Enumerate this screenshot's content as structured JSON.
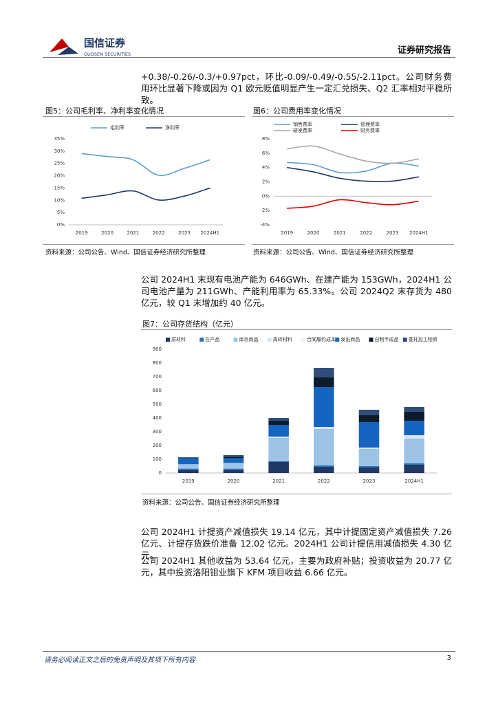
{
  "header": {
    "logo": "国信证券",
    "logo_en": "GUOSEN SECURITIES",
    "report_type": "证券研究报告"
  },
  "paragraphs": [
    "+0.38/-0.26/-0.3/+0.97pct，环比-0.09/-0.49/-0.55/-2.11pct。公司财务费用环比显著下降或因为 Q1 欧元贬值明显产生一定汇兑损失、Q2 汇率相对平稳所致。",
    "公司 2024H1 末现有电池产能为 646GWh、在建产能为 153GWh，2024H1 公司电池产量为 211GWh、产能利用率为 65.33%。公司 2024Q2 末存货为 480 亿元，较 Q1 末增加约 40 亿元。",
    "公司 2024H1 计提资产减值损失 19.14 亿元，其中计提固定资产减值损失 7.26 亿元、计提存货跌价准备 12.02 亿元。2024H1 公司计提信用减值损失 4.30 亿元。",
    "公司 2024H1 其他收益为 53.64 亿元，主要为政府补贴；投资收益为 20.77 亿元，其中投资洛阳钼业旗下 KFM 项目收益 6.66 亿元。"
  ],
  "chart_data": [
    {
      "type": "line",
      "title": "图5：公司毛利率、净利率变化情况",
      "source": "资料来源：公司公告、Wind、国信证券经济研究所整理",
      "categories": [
        "2019",
        "2020",
        "2021",
        "2022",
        "2023",
        "2024H1"
      ],
      "series": [
        {
          "name": "毛利率",
          "color": "#5b9bd5",
          "values": [
            29,
            27.8,
            26.5,
            20.2,
            23,
            26.5
          ]
        },
        {
          "name": "净利率",
          "color": "#1f3864",
          "values": [
            10.8,
            12.2,
            13.8,
            10.1,
            11.7,
            15
          ]
        }
      ],
      "ylim": [
        0,
        35
      ],
      "yticks": [
        {
          "value": 0,
          "label": "0%"
        },
        {
          "value": 5,
          "label": "5%"
        },
        {
          "value": 10,
          "label": "10%"
        },
        {
          "value": 15,
          "label": "15%"
        },
        {
          "value": 20,
          "label": "20%"
        },
        {
          "value": 25,
          "label": "25%"
        },
        {
          "value": 30,
          "label": "30%"
        },
        {
          "value": 35,
          "label": "35%"
        }
      ]
    },
    {
      "type": "line",
      "title": "图6：公司费用率变化情况",
      "source": "资料来源：公司公告、Wind、国信证券经济研究所整理",
      "categories": [
        "2019",
        "2020",
        "2021",
        "2022",
        "2023",
        "2024H1"
      ],
      "series": [
        {
          "name": "销售费率",
          "color": "#5b9bd5",
          "values": [
            4.7,
            4.4,
            3.3,
            3.5,
            4.6,
            4.2
          ]
        },
        {
          "name": "管理费率",
          "color": "#1f3864",
          "values": [
            4.0,
            3.4,
            2.5,
            2.1,
            2.1,
            2.7
          ]
        },
        {
          "name": "研发费率",
          "color": "#a6a6a6",
          "values": [
            6.6,
            7.0,
            5.9,
            4.9,
            4.6,
            5.2
          ]
        },
        {
          "name": "财务费率",
          "color": "#e00000",
          "values": [
            -1.7,
            -1.4,
            -0.5,
            -0.9,
            -1.2,
            -0.7
          ]
        }
      ],
      "ylim": [
        -4,
        8
      ],
      "yticks": [
        {
          "value": -4,
          "label": "-4%"
        },
        {
          "value": -2,
          "label": "-2%"
        },
        {
          "value": 0,
          "label": "0%"
        },
        {
          "value": 2,
          "label": "2%"
        },
        {
          "value": 4,
          "label": "4%"
        },
        {
          "value": 6,
          "label": "6%"
        },
        {
          "value": 8,
          "label": "8%"
        }
      ]
    },
    {
      "type": "bar",
      "stacked": true,
      "title": "图7：公司存货结构（亿元）",
      "source": "资料来源：公司公告、国信证券经济研究所整理",
      "categories": [
        "2019",
        "2020",
        "2021",
        "2022",
        "2023",
        "2024H1"
      ],
      "series": [
        {
          "name": "原材料",
          "color": "#1f3864",
          "values": [
            22,
            22,
            80,
            45,
            40,
            60
          ]
        },
        {
          "name": "在产品",
          "color": "#2e75b6",
          "values": [
            10,
            10,
            5,
            10,
            10,
            10
          ]
        },
        {
          "name": "库存商品",
          "color": "#9dc3e6",
          "values": [
            28,
            38,
            170,
            265,
            125,
            180
          ]
        },
        {
          "name": "周转材料",
          "color": "#d6e6f5",
          "values": [
            3,
            3,
            10,
            15,
            10,
            25
          ]
        },
        {
          "name": "合同履约成本",
          "color": "#eef4fb",
          "values": [
            0,
            0,
            0,
            0,
            0,
            0
          ]
        },
        {
          "name": "发出商品",
          "color": "#1565c0",
          "values": [
            45,
            35,
            85,
            290,
            185,
            105
          ]
        },
        {
          "name": "自制半成品",
          "color": "#0d1b2a",
          "values": [
            3,
            10,
            30,
            70,
            50,
            65
          ]
        },
        {
          "name": "委托加工物资",
          "color": "#2f4f7a",
          "values": [
            4,
            12,
            20,
            70,
            40,
            35
          ]
        }
      ],
      "ylim": [
        0,
        900
      ],
      "yticks": [
        0,
        100,
        200,
        300,
        400,
        500,
        600,
        700,
        800,
        900
      ]
    }
  ],
  "footer": {
    "disclaimer": "请务必阅读正文之后的免责声明及其项下所有内容",
    "page": "3"
  }
}
